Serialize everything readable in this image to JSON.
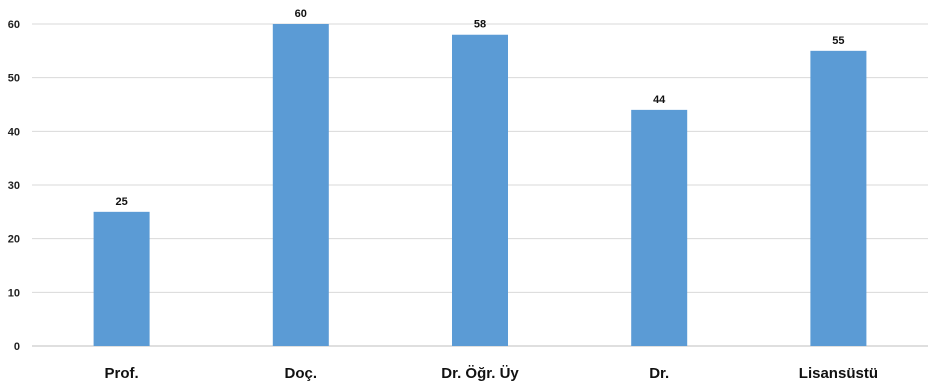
{
  "chart_data": {
    "type": "bar",
    "categories": [
      "Prof.",
      "Doç.",
      "Dr. Öğr. Üy",
      "Dr.",
      "Lisansüstü"
    ],
    "values": [
      25,
      60,
      58,
      44,
      55
    ],
    "title": "",
    "xlabel": "",
    "ylabel": "",
    "ylim": [
      0,
      60
    ],
    "yticks": [
      0,
      10,
      20,
      30,
      40,
      50,
      60
    ],
    "grid": true,
    "data_labels": true,
    "bar_color": "#5b9bd5",
    "grid_color": "#d9d9d9",
    "axis_color": "#bfbfbf"
  }
}
